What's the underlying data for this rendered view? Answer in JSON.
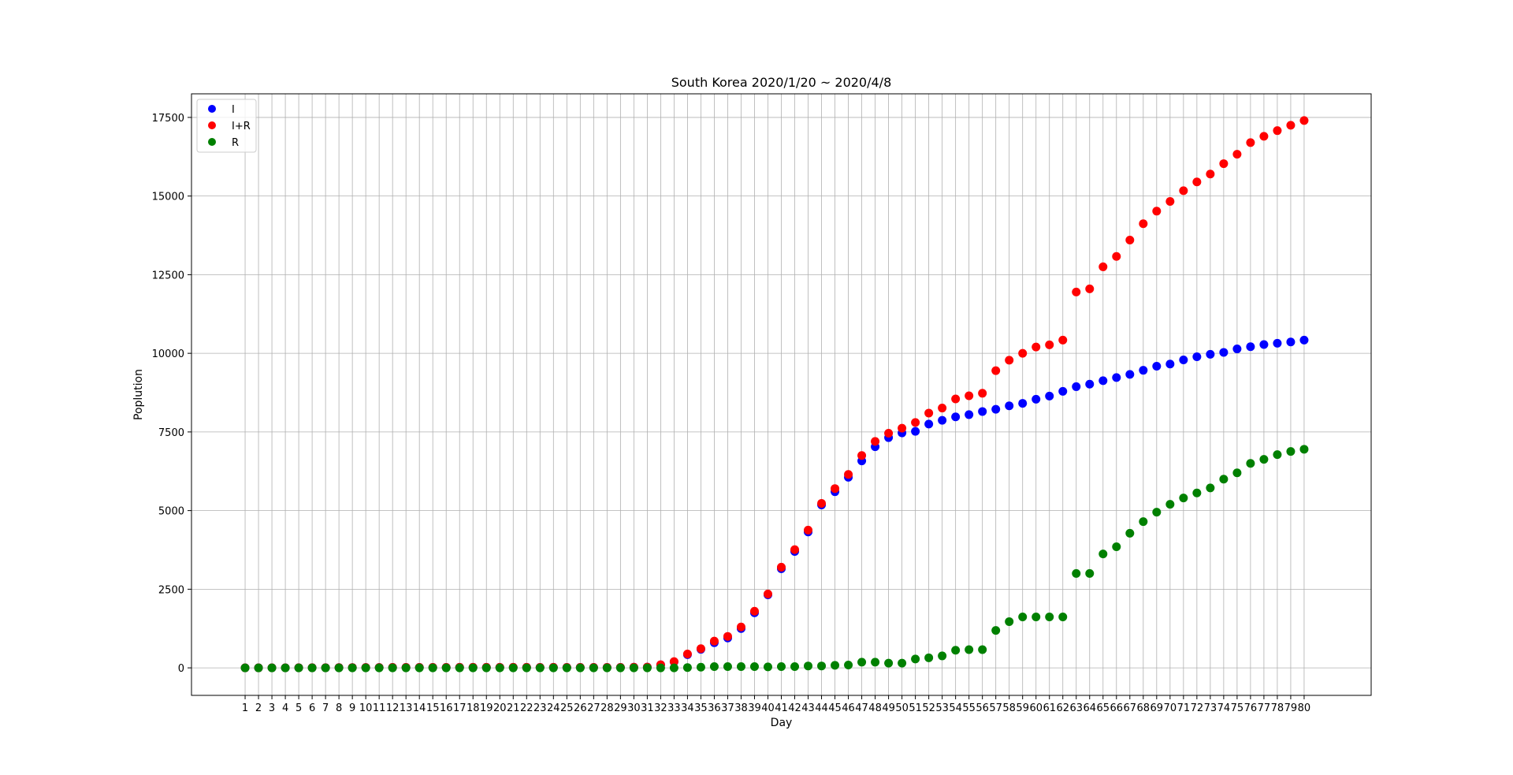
{
  "chart_data": {
    "type": "scatter",
    "title": "South Korea 2020/1/20 ~ 2020/4/8",
    "xlabel": "Day",
    "ylabel": "Poplution",
    "xlim": [
      -3,
      85
    ],
    "ylim": [
      -875,
      18250
    ],
    "yticks": [
      0,
      2500,
      5000,
      7500,
      10000,
      12500,
      15000,
      17500
    ],
    "xticks": [
      1,
      2,
      3,
      4,
      5,
      6,
      7,
      8,
      9,
      10,
      11,
      12,
      13,
      14,
      15,
      16,
      17,
      18,
      19,
      20,
      21,
      22,
      23,
      24,
      25,
      26,
      27,
      28,
      29,
      30,
      31,
      32,
      33,
      34,
      35,
      36,
      37,
      38,
      39,
      40,
      41,
      42,
      43,
      44,
      45,
      46,
      47,
      48,
      49,
      50,
      51,
      52,
      53,
      54,
      55,
      56,
      57,
      58,
      59,
      60,
      61,
      62,
      63,
      64,
      65,
      66,
      67,
      68,
      69,
      70,
      71,
      72,
      73,
      74,
      75,
      76,
      77,
      78,
      79,
      80
    ],
    "grid": true,
    "legend_position": "top-left",
    "x": [
      1,
      2,
      3,
      4,
      5,
      6,
      7,
      8,
      9,
      10,
      11,
      12,
      13,
      14,
      15,
      16,
      17,
      18,
      19,
      20,
      21,
      22,
      23,
      24,
      25,
      26,
      27,
      28,
      29,
      30,
      31,
      32,
      33,
      34,
      35,
      36,
      37,
      38,
      39,
      40,
      41,
      42,
      43,
      44,
      45,
      46,
      47,
      48,
      49,
      50,
      51,
      52,
      53,
      54,
      55,
      56,
      57,
      58,
      59,
      60,
      61,
      62,
      63,
      64,
      65,
      66,
      67,
      68,
      69,
      70,
      71,
      72,
      73,
      74,
      75,
      76,
      77,
      78,
      79,
      80
    ],
    "series": [
      {
        "name": "I",
        "color": "#0000ff",
        "values": [
          1,
          1,
          2,
          3,
          4,
          4,
          4,
          7,
          10,
          11,
          12,
          14,
          15,
          15,
          15,
          16,
          17,
          17,
          17,
          17,
          18,
          18,
          16,
          17,
          14,
          14,
          15,
          15,
          16,
          20,
          23,
          95,
          190,
          420,
          590,
          800,
          950,
          1250,
          1750,
          2320,
          3150,
          3700,
          4320,
          5180,
          5600,
          6060,
          6580,
          7030,
          7320,
          7470,
          7520,
          7750,
          7870,
          7980,
          8050,
          8150,
          8220,
          8330,
          8410,
          8540,
          8640,
          8790,
          8940,
          9020,
          9130,
          9230,
          9330,
          9460,
          9590,
          9660,
          9790,
          9890,
          9970,
          10030,
          10140,
          10210,
          10280,
          10320,
          10360,
          10420
        ]
      },
      {
        "name": "I+R",
        "color": "#ff0000",
        "values": [
          1,
          1,
          2,
          3,
          4,
          4,
          4,
          7,
          10,
          11,
          12,
          14,
          15,
          15,
          15,
          16,
          17,
          17,
          17,
          17,
          18,
          18,
          16,
          17,
          14,
          14,
          15,
          15,
          16,
          20,
          23,
          100,
          200,
          440,
          610,
          850,
          1000,
          1300,
          1800,
          2350,
          3200,
          3760,
          4380,
          5230,
          5700,
          6150,
          6750,
          7200,
          7460,
          7620,
          7800,
          8100,
          8260,
          8550,
          8650,
          8730,
          9450,
          9780,
          10000,
          10200,
          10270,
          10420,
          11950,
          12050,
          12750,
          13080,
          13600,
          14120,
          14520,
          14830,
          15170,
          15450,
          15700,
          16030,
          16330,
          16700,
          16900,
          17080,
          17250,
          17400
        ]
      },
      {
        "name": "R",
        "color": "#008000",
        "values": [
          0,
          0,
          0,
          0,
          0,
          0,
          0,
          0,
          0,
          0,
          0,
          0,
          0,
          0,
          0,
          0,
          0,
          0,
          0,
          0,
          0,
          0,
          0,
          0,
          0,
          0,
          0,
          0,
          0,
          0,
          0,
          0,
          0,
          10,
          20,
          40,
          40,
          40,
          40,
          30,
          40,
          40,
          60,
          60,
          80,
          90,
          180,
          180,
          150,
          150,
          280,
          320,
          380,
          560,
          580,
          580,
          1190,
          1470,
          1620,
          1620,
          1620,
          1620,
          3000,
          3000,
          3620,
          3850,
          4280,
          4650,
          4950,
          5200,
          5400,
          5560,
          5720,
          6000,
          6200,
          6500,
          6630,
          6780,
          6880,
          6950
        ]
      }
    ]
  }
}
